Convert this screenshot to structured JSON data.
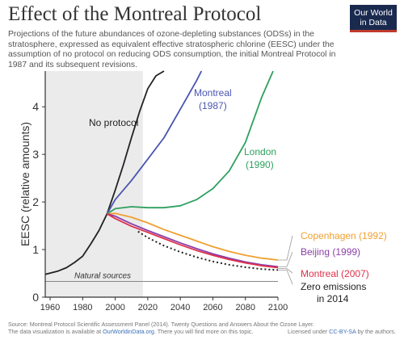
{
  "header": {
    "title": "Effect of the Montreal Protocol",
    "subtitle": "Projections of the future abundances of ozone-depleting substances (ODSs) in the stratosphere, expressed as equivalent effective stratospheric chlorine (EESC) under the assumption of no protocol on reducing ODS consumption, the initial Montreal Protocol in 1987 and its subsequent revisions.",
    "logo_line1": "Our World",
    "logo_line2": "in Data"
  },
  "footer": {
    "source": "Source: Montreal Protocol Scientific Assessment Panel (2014). Twenty Questions and Answers About the Ozone Layer.",
    "note_prefix": "The data visualization is available at",
    "note_link": "OurWorldinData.org",
    "note_suffix": ". There you will find more on this topic.",
    "license_prefix": "Licensed under",
    "license_link": "CC-BY-SA",
    "license_suffix": "by the authors."
  },
  "chart_data": {
    "type": "line",
    "ylabel": "EESC (relative amounts)",
    "xlabel": "",
    "xlim": [
      1957,
      2100
    ],
    "ylim": [
      0,
      4.75
    ],
    "x_ticks": [
      "1960",
      "1980",
      "2000",
      "2020",
      "2040",
      "2060",
      "2080",
      "2100"
    ],
    "y_ticks": [
      "0",
      "1",
      "2",
      "3",
      "4"
    ],
    "shaded_region": [
      1957,
      2017
    ],
    "natural_sources": {
      "label": "Natural sources",
      "value": 0.33
    },
    "colors": {
      "no_protocol": "#222222",
      "montreal_1987": "#4a55b0",
      "london_1990": "#2ea05f",
      "copenhagen_1992": "#f0a030",
      "beijing_1999": "#8a3fa8",
      "montreal_2007": "#e0304a",
      "zero_emissions_2014": "#222222"
    },
    "series": [
      {
        "key": "no_protocol",
        "name": "No protocol",
        "x": [
          1957,
          1965,
          1970,
          1975,
          1980,
          1985,
          1990,
          1995,
          2000,
          2005,
          2010,
          2015,
          2020,
          2025,
          2030
        ],
        "y": [
          0.48,
          0.55,
          0.62,
          0.73,
          0.86,
          1.12,
          1.4,
          1.75,
          2.25,
          2.78,
          3.35,
          3.9,
          4.38,
          4.65,
          4.78
        ]
      },
      {
        "key": "montreal_1987",
        "name": "Montreal (1987)",
        "x": [
          1995,
          2000,
          2010,
          2020,
          2030,
          2040,
          2050,
          2053
        ],
        "y": [
          1.75,
          2.05,
          2.45,
          2.9,
          3.35,
          3.95,
          4.55,
          4.78
        ]
      },
      {
        "key": "london_1990",
        "name": "London (1990)",
        "x": [
          1995,
          2000,
          2010,
          2020,
          2030,
          2040,
          2050,
          2060,
          2070,
          2080,
          2090,
          2097
        ],
        "y": [
          1.75,
          1.86,
          1.9,
          1.88,
          1.88,
          1.92,
          2.05,
          2.28,
          2.65,
          3.25,
          4.2,
          4.78
        ]
      },
      {
        "key": "copenhagen_1992",
        "name": "Copenhagen (1992)",
        "x": [
          1995,
          2000,
          2010,
          2020,
          2030,
          2040,
          2050,
          2060,
          2070,
          2080,
          2090,
          2100
        ],
        "y": [
          1.75,
          1.76,
          1.68,
          1.56,
          1.42,
          1.3,
          1.18,
          1.06,
          0.96,
          0.88,
          0.82,
          0.78
        ]
      },
      {
        "key": "beijing_1999",
        "name": "Beijing (1999)",
        "x": [
          1995,
          2000,
          2010,
          2020,
          2030,
          2040,
          2050,
          2060,
          2070,
          2080,
          2090,
          2100
        ],
        "y": [
          1.75,
          1.7,
          1.54,
          1.4,
          1.27,
          1.14,
          1.02,
          0.91,
          0.82,
          0.74,
          0.68,
          0.64
        ]
      },
      {
        "key": "montreal_2007",
        "name": "Montreal (2007)",
        "x": [
          1995,
          2000,
          2010,
          2020,
          2030,
          2040,
          2050,
          2060,
          2070,
          2080,
          2090,
          2100
        ],
        "y": [
          1.75,
          1.65,
          1.49,
          1.36,
          1.23,
          1.1,
          0.98,
          0.88,
          0.79,
          0.72,
          0.66,
          0.62
        ]
      },
      {
        "key": "zero_emissions_2014",
        "name": "Zero emissions in 2014",
        "dashed": true,
        "x": [
          2014,
          2020,
          2030,
          2040,
          2050,
          2060,
          2070,
          2080,
          2090,
          2100
        ],
        "y": [
          1.38,
          1.25,
          1.08,
          0.95,
          0.84,
          0.75,
          0.68,
          0.63,
          0.59,
          0.57
        ]
      }
    ],
    "annotations": {
      "no_protocol": "No protocol",
      "montreal_1987_line1": "Montreal",
      "montreal_1987_line2": "(1987)",
      "london_1990_line1": "London",
      "london_1990_line2": "(1990)",
      "copenhagen_1992": "Copenhagen (1992)",
      "beijing_1999": "Beijing (1999)",
      "montreal_2007": "Montreal (2007)",
      "zero_line1": "Zero emissions",
      "zero_line2": "in 2014"
    }
  }
}
